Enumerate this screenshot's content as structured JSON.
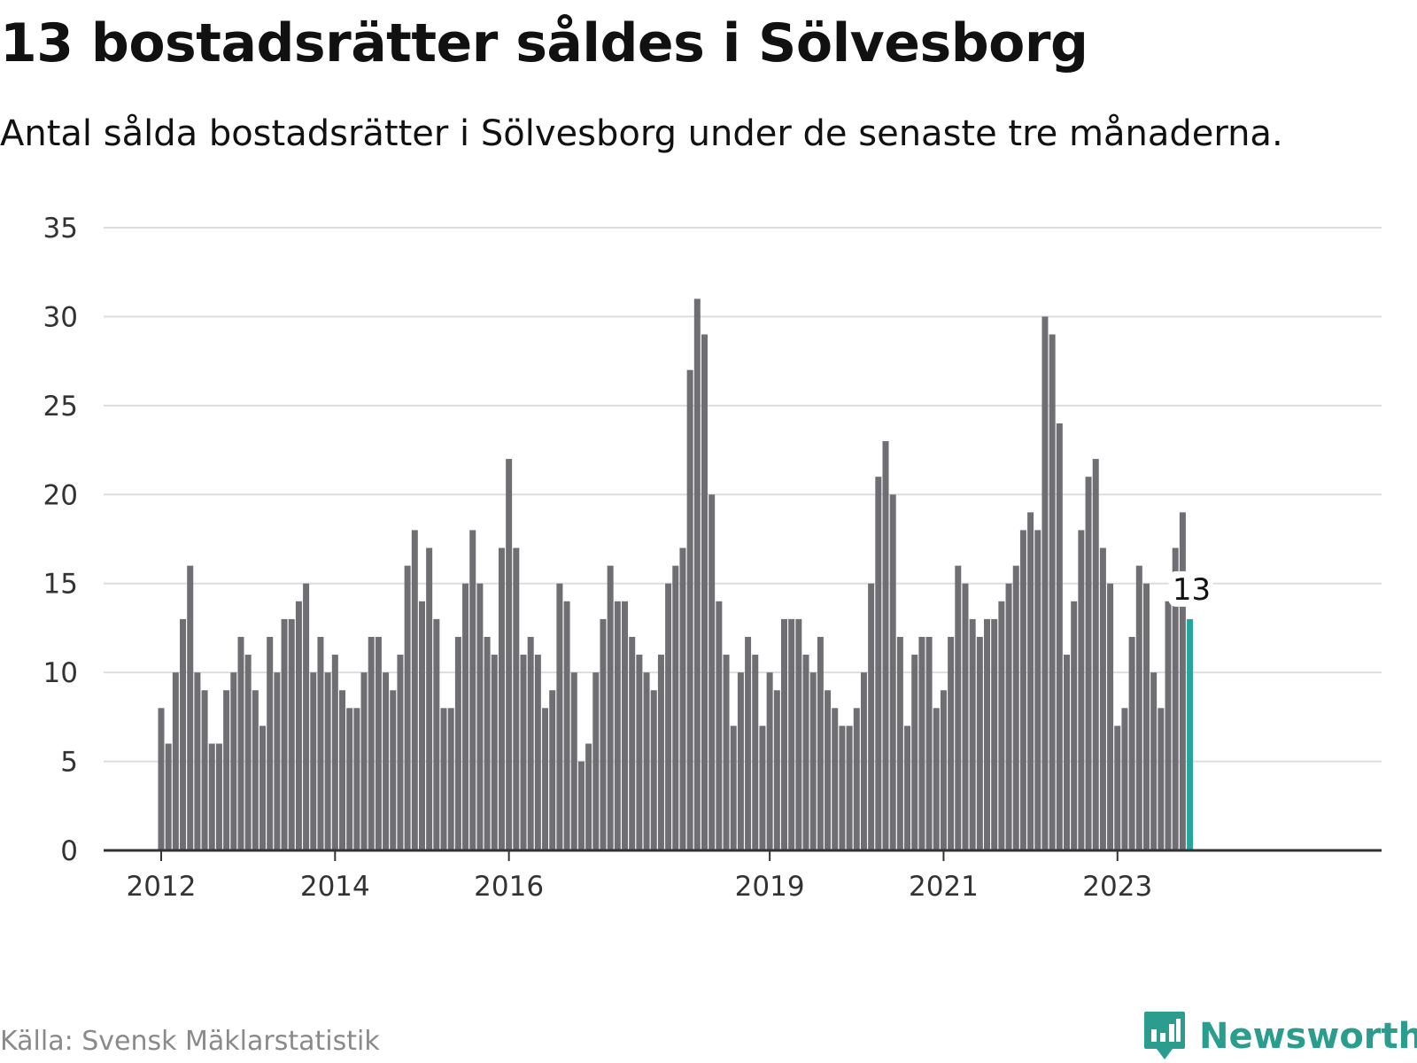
{
  "title": "13 bostadsrätter såldes i Sölvesborg",
  "subtitle": "Antal sålda bostadsrätter i Sölvesborg under de senaste tre månaderna.",
  "source": "Källa: Svensk Mäklarstatistik",
  "brand": {
    "name": "Newsworthy",
    "icon": "newsworthy-logo-icon"
  },
  "colors": {
    "bar": "#6e6e73",
    "highlight": "#26a69a",
    "grid": "#dddddd",
    "axis": "#333333"
  },
  "chart_data": {
    "type": "bar",
    "title": "13 bostadsrätter såldes i Sölvesborg",
    "subtitle": "Antal sålda bostadsrätter i Sölvesborg under de senaste tre månaderna.",
    "ylim": [
      0,
      35
    ],
    "yticks": [
      0,
      5,
      10,
      15,
      20,
      25,
      30,
      35
    ],
    "xticks": [
      {
        "label": "2012",
        "index": 0
      },
      {
        "label": "2014",
        "index": 24
      },
      {
        "label": "2016",
        "index": 48
      },
      {
        "label": "2019",
        "index": 84
      },
      {
        "label": "2021",
        "index": 108
      },
      {
        "label": "2023",
        "index": 132
      }
    ],
    "grid": true,
    "start": "2012-01",
    "interval": "month",
    "values": [
      8,
      6,
      10,
      13,
      16,
      10,
      9,
      6,
      6,
      9,
      10,
      12,
      11,
      9,
      7,
      12,
      10,
      13,
      13,
      14,
      15,
      10,
      12,
      10,
      11,
      9,
      8,
      8,
      10,
      12,
      12,
      10,
      9,
      11,
      16,
      18,
      14,
      17,
      13,
      8,
      8,
      12,
      15,
      18,
      15,
      12,
      11,
      17,
      22,
      17,
      11,
      12,
      11,
      8,
      9,
      15,
      14,
      10,
      5,
      6,
      10,
      13,
      16,
      14,
      14,
      12,
      11,
      10,
      9,
      11,
      15,
      16,
      17,
      27,
      31,
      29,
      20,
      14,
      11,
      7,
      10,
      12,
      11,
      7,
      10,
      9,
      13,
      13,
      13,
      11,
      10,
      12,
      9,
      8,
      7,
      7,
      8,
      10,
      15,
      21,
      23,
      20,
      12,
      7,
      11,
      12,
      12,
      8,
      9,
      12,
      16,
      15,
      13,
      12,
      13,
      13,
      14,
      15,
      16,
      18,
      19,
      18,
      30,
      29,
      24,
      11,
      14,
      18,
      21,
      22,
      17,
      15,
      7,
      8,
      12,
      16,
      15,
      10,
      8,
      14,
      17,
      19,
      13
    ],
    "highlight": {
      "index": 142,
      "label": "13",
      "value": 13
    }
  }
}
